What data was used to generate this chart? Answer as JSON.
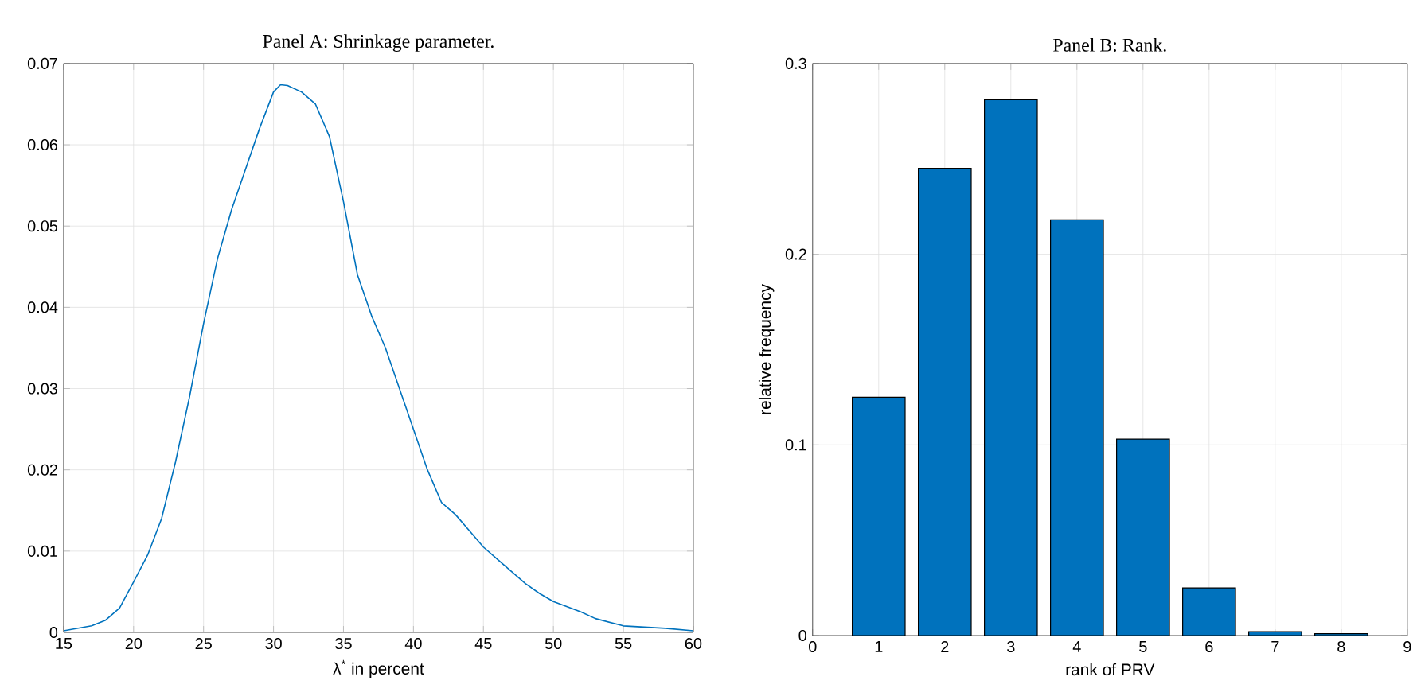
{
  "chart_data": [
    {
      "type": "line",
      "title": "Panel A: Shrinkage parameter.",
      "xlabel": "λ$^{*}$ in percent",
      "color": "#0072bd",
      "grid": true,
      "x": [
        15,
        17,
        18,
        19,
        20,
        21,
        22,
        23,
        24,
        25,
        26,
        27,
        28,
        29,
        30,
        30.5,
        31,
        32,
        33,
        34,
        35,
        36,
        37,
        38,
        39,
        40,
        41,
        42,
        43,
        44,
        45,
        46,
        47,
        48,
        49,
        50,
        52,
        53,
        55,
        58,
        60
      ],
      "values": [
        0.0002,
        0.0008,
        0.0015,
        0.003,
        0.0062,
        0.0095,
        0.014,
        0.021,
        0.029,
        0.038,
        0.046,
        0.052,
        0.057,
        0.062,
        0.0665,
        0.0674,
        0.0673,
        0.0665,
        0.065,
        0.061,
        0.053,
        0.044,
        0.039,
        0.035,
        0.03,
        0.025,
        0.02,
        0.016,
        0.0145,
        0.0125,
        0.0105,
        0.009,
        0.0075,
        0.006,
        0.0048,
        0.0038,
        0.0025,
        0.0017,
        0.0008,
        0.0005,
        0.0002
      ],
      "xlim": [
        15,
        60
      ],
      "ylim": [
        0,
        0.07
      ],
      "xticks": [
        15,
        20,
        25,
        30,
        35,
        40,
        45,
        50,
        55,
        60
      ],
      "yticks": [
        0,
        0.01,
        0.02,
        0.03,
        0.04,
        0.05,
        0.06,
        0.07
      ]
    },
    {
      "type": "bar",
      "title": "Panel B: Rank.",
      "xlabel": "rank of PRV",
      "ylabel": "relative frequency",
      "color": "#0072bd",
      "grid": true,
      "x": [
        1,
        2,
        3,
        4,
        5,
        6,
        7,
        8
      ],
      "values": [
        0.125,
        0.245,
        0.281,
        0.218,
        0.103,
        0.025,
        0.002,
        0.001
      ],
      "xlim": [
        0,
        9
      ],
      "ylim": [
        0,
        0.3
      ],
      "xticks": [
        0,
        1,
        2,
        3,
        4,
        5,
        6,
        7,
        8,
        9
      ],
      "yticks": [
        0,
        0.1,
        0.2,
        0.3
      ]
    }
  ]
}
